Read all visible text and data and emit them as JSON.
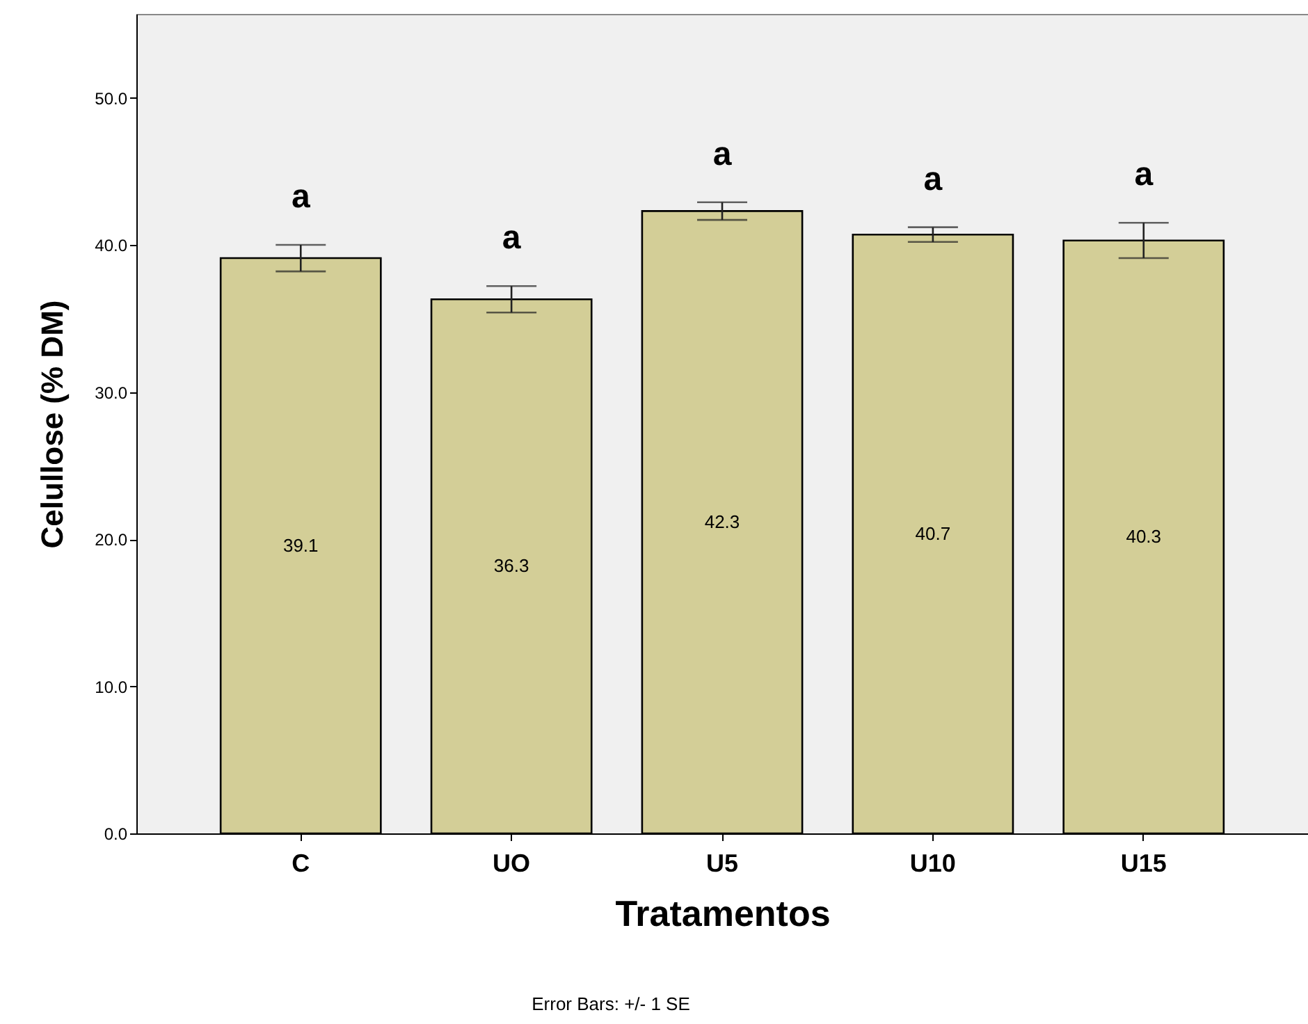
{
  "chart_data": {
    "type": "bar",
    "categories": [
      "C",
      "UO",
      "U5",
      "U10",
      "U15"
    ],
    "values": [
      39.1,
      36.3,
      42.3,
      40.7,
      40.3
    ],
    "errors": [
      0.9,
      0.9,
      0.6,
      0.5,
      1.2
    ],
    "color": "#d3ce97",
    "data_labels": true,
    "xlabel": "Tratamentos",
    "ylabel": "Celullose (% DM)",
    "ylim": [
      0,
      55.7
    ],
    "yticks": [
      {
        "value": 0,
        "label": "0.0"
      },
      {
        "value": 10,
        "label": "10.0"
      },
      {
        "value": 20,
        "label": "20.0"
      },
      {
        "value": 30,
        "label": "30.0"
      },
      {
        "value": 40,
        "label": "40.0"
      },
      {
        "value": 50,
        "label": "50.0"
      }
    ],
    "grid": false,
    "annotations": [
      "a",
      "a",
      "a",
      "a",
      "a",
      "Error Bars: +/- 1 SE"
    ]
  }
}
